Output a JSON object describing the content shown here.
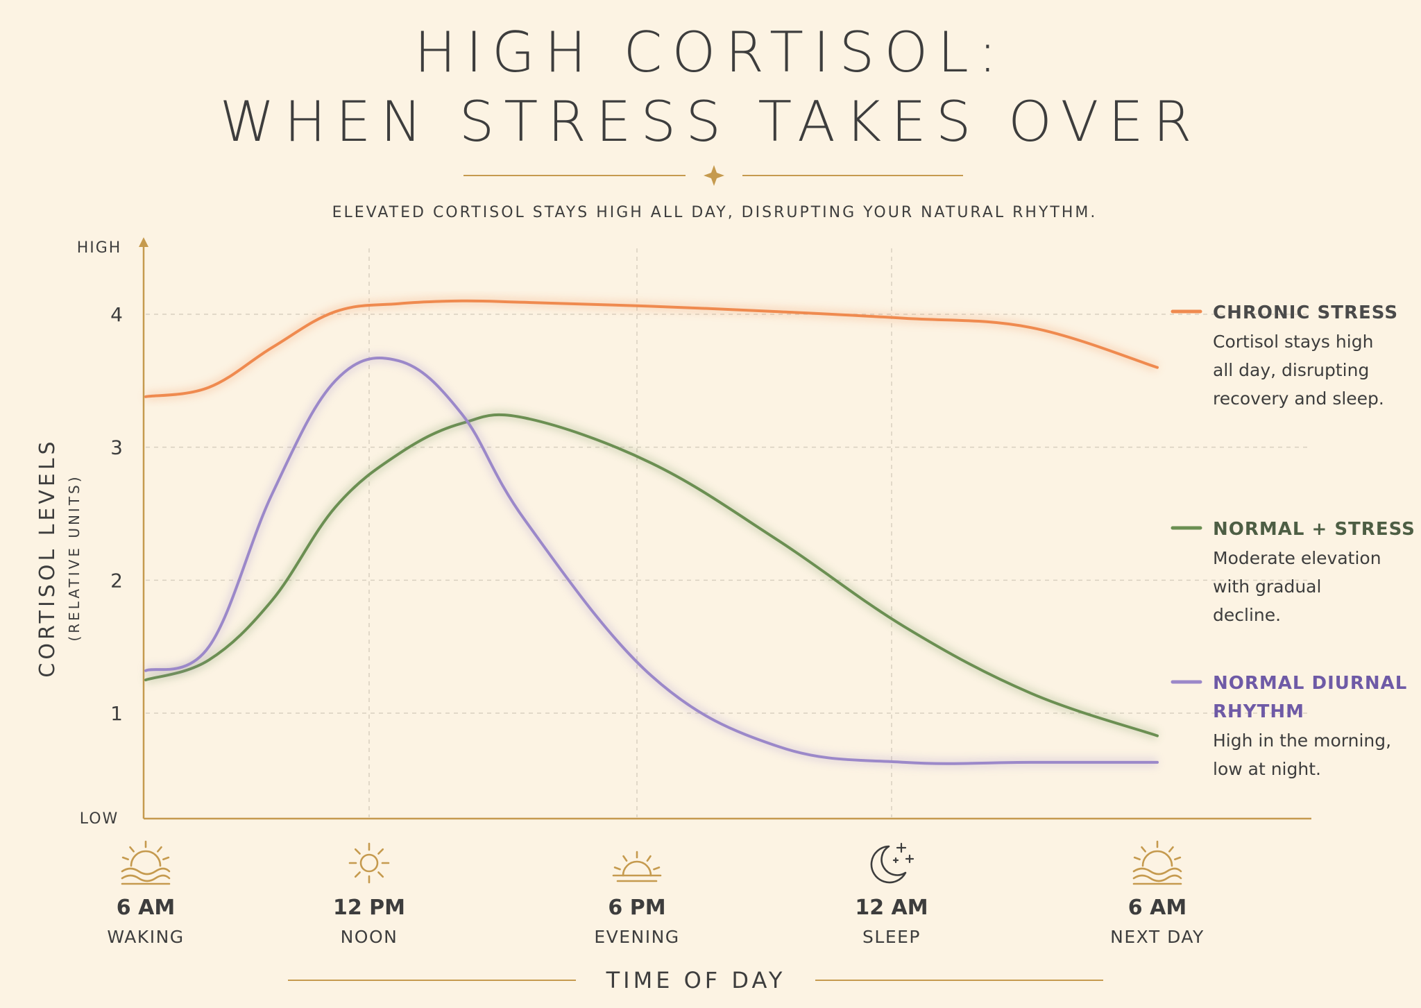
{
  "header": {
    "title_line1": "HIGH CORTISOL:",
    "title_line2": "WHEN STRESS TAKES OVER",
    "subtitle": "ELEVATED CORTISOL STAYS HIGH ALL DAY, DISRUPTING YOUR NATURAL RHYTHM."
  },
  "colors": {
    "background": "#fcf3e3",
    "accent_gold": "#c59a4e",
    "chronic_stress": "#ef8a4f",
    "normal_stress": "#6b8f52",
    "normal_diurnal": "#9b88c9",
    "text": "#3d3d3d"
  },
  "chart_data": {
    "type": "line",
    "ylabel": "CORTISOL LEVELS",
    "ylabel_sub": "(RELATIVE UNITS)",
    "xlabel": "TIME OF DAY",
    "y_top_label": "HIGH",
    "y_bottom_label": "LOW",
    "y_ticks": [
      "1",
      "2",
      "3",
      "4"
    ],
    "ylim": [
      0.25,
      4.25
    ],
    "grid": true,
    "x_ticks": [
      {
        "time": "6 AM",
        "period": "WAKING",
        "icon": "sunrise-icon"
      },
      {
        "time": "12 PM",
        "period": "NOON",
        "icon": "sun-icon"
      },
      {
        "time": "6 PM",
        "period": "EVENING",
        "icon": "sunset-icon"
      },
      {
        "time": "12 AM",
        "period": "SLEEP",
        "icon": "moon-stars-icon"
      },
      {
        "time": "6 AM",
        "period": "NEXT DAY",
        "icon": "sunrise-icon"
      }
    ],
    "x_hours": [
      0,
      6,
      12,
      18,
      24
    ],
    "series": [
      {
        "name": "CHRONIC STRESS",
        "description": [
          "Cortisol stays high",
          "all day, disrupting",
          "recovery and sleep."
        ],
        "color": "#ef8a4f",
        "x": [
          0,
          1.5,
          3,
          4.5,
          6,
          7.5,
          9,
          12,
          15,
          18,
          21,
          24
        ],
        "y": [
          3.38,
          3.45,
          3.75,
          4.02,
          4.08,
          4.1,
          4.09,
          4.06,
          4.02,
          3.97,
          3.9,
          3.6
        ]
      },
      {
        "name": "NORMAL + STRESS",
        "description": [
          "Moderate elevation",
          "with gradual",
          "decline."
        ],
        "color": "#6b8f52",
        "x": [
          0,
          1.5,
          3,
          4.5,
          6,
          7.5,
          9,
          12,
          15,
          18,
          21,
          24
        ],
        "y": [
          1.25,
          1.4,
          1.85,
          2.55,
          2.95,
          3.18,
          3.22,
          2.88,
          2.3,
          1.65,
          1.15,
          0.83
        ]
      },
      {
        "name": "NORMAL DIURNAL RHYTHM",
        "description": [
          "High in the morning,",
          "low at night."
        ],
        "color": "#9b88c9",
        "x": [
          0,
          1.5,
          3,
          4.5,
          6,
          7.5,
          9,
          12,
          15,
          18,
          21,
          24
        ],
        "y": [
          1.32,
          1.5,
          2.65,
          3.5,
          3.65,
          3.25,
          2.45,
          1.28,
          0.75,
          0.63,
          0.63,
          0.63
        ]
      }
    ]
  }
}
